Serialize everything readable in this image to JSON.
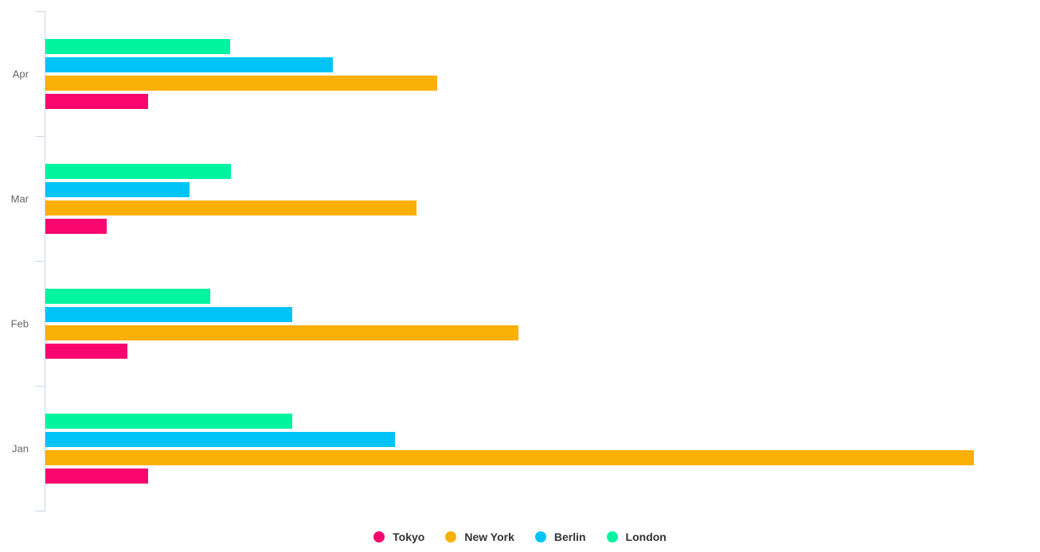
{
  "chart_data": {
    "type": "bar",
    "orientation": "horizontal",
    "title": "",
    "categories": [
      "Apr",
      "Mar",
      "Feb",
      "Jan"
    ],
    "series": [
      {
        "name": "Tokyo",
        "color": "#f9056f",
        "values": [
          10.4,
          6.2,
          8.3,
          10.4
        ]
      },
      {
        "name": "New York",
        "color": "#fbb005",
        "values": [
          39.7,
          37.6,
          47.9,
          94.0
        ]
      },
      {
        "name": "Berlin",
        "color": "#00c4f6",
        "values": [
          29.1,
          14.6,
          25.0,
          35.4
        ]
      },
      {
        "name": "London",
        "color": "#00f4a0",
        "values": [
          18.7,
          18.8,
          16.7,
          25.0
        ]
      }
    ],
    "series_row_order_top_to_bottom": [
      "London",
      "Berlin",
      "New York",
      "Tokyo"
    ],
    "xlim": [
      0,
      100
    ],
    "value_axis_tick_labels_visible": false,
    "grid": false,
    "legend_position": "bottom-center",
    "axis_color": "#ccd6eb",
    "category_label_color": "#666666",
    "legend_text_color": "#333333",
    "background_color": "#ffffff"
  }
}
